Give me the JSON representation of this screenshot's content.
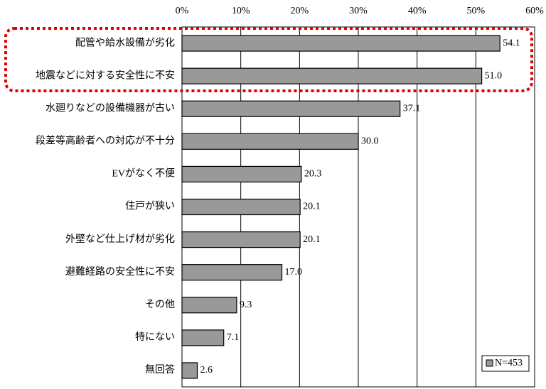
{
  "chart_data": {
    "type": "bar",
    "orientation": "horizontal",
    "categories": [
      "配管や給水設備が劣化",
      "地震などに対する安全性に不安",
      "水廻りなどの設備機器が古い",
      "段差等高齢者への対応が不十分",
      "EVがなく不便",
      "住戸が狭い",
      "外壁など仕上げ材が劣化",
      "避難経路の安全性に不安",
      "その他",
      "特にない",
      "無回答"
    ],
    "series": [
      {
        "name": "N=453",
        "color": "#999999",
        "values": [
          54.1,
          51.0,
          37.1,
          30.0,
          20.3,
          20.1,
          20.1,
          17.0,
          9.3,
          7.1,
          2.6
        ],
        "value_labels": [
          "54.1",
          "51.0",
          "37.1",
          "30.0",
          "20.3",
          "20.1",
          "20.1",
          "17.0",
          "9.3",
          "7.1",
          "2.6"
        ]
      }
    ],
    "xlim": [
      0,
      60
    ],
    "xticks": [
      {
        "value": 0,
        "label": "0%"
      },
      {
        "value": 10,
        "label": "10%"
      },
      {
        "value": 20,
        "label": "20%"
      },
      {
        "value": 30,
        "label": "30%"
      },
      {
        "value": 40,
        "label": "40%"
      },
      {
        "value": 50,
        "label": "50%"
      },
      {
        "value": 60,
        "label": "60%"
      }
    ],
    "grid": true,
    "legend": "bottom-right"
  }
}
